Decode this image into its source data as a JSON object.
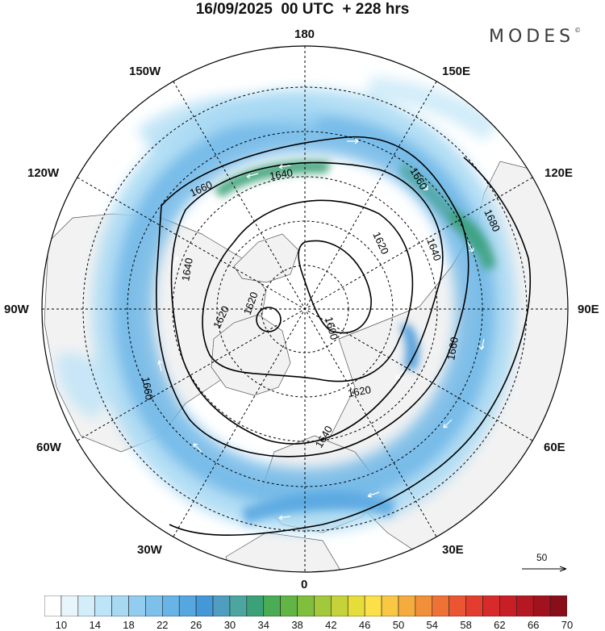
{
  "header": {
    "title": "16/09/2025  00 UTC  + 228 hrs",
    "brand": "MODES",
    "brand_mark": "©"
  },
  "map": {
    "projection": "north polar stereographic",
    "longitude_labels": {
      "top": "180",
      "top_right": "150E",
      "right_upper": "120E",
      "right": "90E",
      "right_lower": "60E",
      "bottom_right": "30E",
      "bottom": "0",
      "bottom_left": "30W",
      "left_lower": "60W",
      "left": "90W",
      "left_upper": "120W",
      "top_left": "150W"
    },
    "contour_labels": [
      "1660",
      "1640",
      "1660",
      "1680",
      "1620",
      "1640",
      "1640",
      "1620",
      "1600",
      "1620",
      "1660",
      "1660",
      "1640",
      "1620"
    ],
    "colors": {
      "land": "#f2f2f2",
      "ocean": "#ffffff",
      "coast": "#555555",
      "contour": "#000000",
      "arrow": "#ffffff"
    }
  },
  "reference_vector": {
    "label": "50"
  },
  "colorbar": {
    "labels": [
      "10",
      "14",
      "18",
      "22",
      "26",
      "30",
      "34",
      "38",
      "42",
      "46",
      "50",
      "54",
      "58",
      "62",
      "66",
      "70"
    ],
    "colors": [
      "#ffffff",
      "#e8f6fc",
      "#d3eefa",
      "#bde4f7",
      "#a7d9f3",
      "#92cdef",
      "#7dc1eb",
      "#69b4e6",
      "#56a6e0",
      "#4498d8",
      "#4f9ec0",
      "#4da5a0",
      "#3ba178",
      "#4aac55",
      "#62b444",
      "#80be3e",
      "#a2c83c",
      "#c5d23a",
      "#e6dc3a",
      "#fbe04a",
      "#f8c844",
      "#f5ac3f",
      "#f28f3a",
      "#ee7235",
      "#e95631",
      "#e23d2e",
      "#d72a2b",
      "#c81f27",
      "#b61823",
      "#a1121e",
      "#8a0d1a"
    ]
  }
}
